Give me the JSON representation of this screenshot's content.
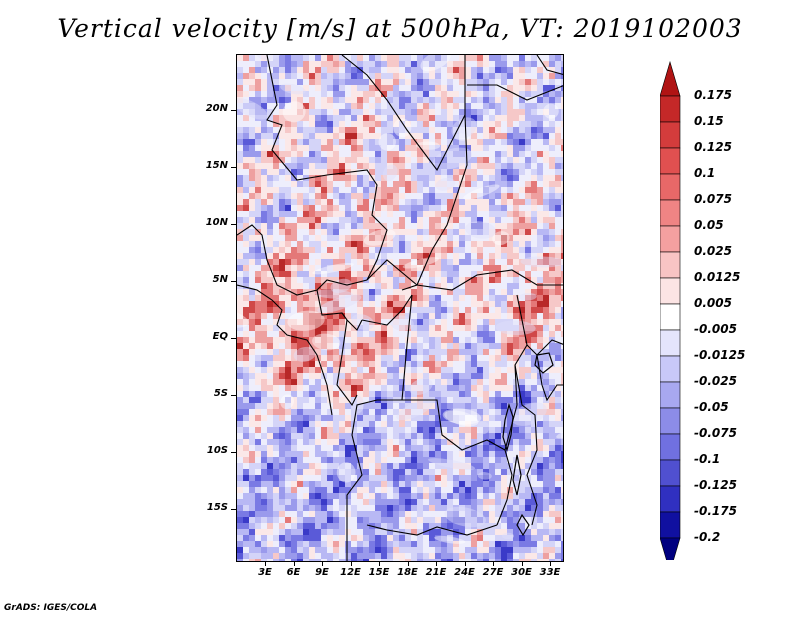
{
  "title": "Vertical velocity [m/s] at 500hPa, VT: 2019102003",
  "footer": "GrADS: IGES/COLA",
  "map": {
    "variable": "Vertical velocity",
    "units": "m/s",
    "level": "500hPa",
    "valid_time": "2019102003",
    "lat_labels": [
      "20N",
      "15N",
      "10N",
      "5N",
      "EQ",
      "5S",
      "10S",
      "15S"
    ],
    "lon_labels": [
      "3E",
      "6E",
      "9E",
      "12E",
      "15E",
      "18E",
      "21E",
      "24E",
      "27E",
      "30E",
      "33E"
    ]
  },
  "colorbar": {
    "labels": [
      "0.175",
      "0.15",
      "0.125",
      "0.1",
      "0.075",
      "0.05",
      "0.025",
      "0.0125",
      "0.005",
      "-0.005",
      "-0.0125",
      "-0.025",
      "-0.05",
      "-0.075",
      "-0.1",
      "-0.125",
      "-0.175",
      "-0.2"
    ],
    "colors": [
      "#b01414",
      "#c42828",
      "#d43c3c",
      "#e05050",
      "#e86868",
      "#f08484",
      "#f4a0a0",
      "#f8c4c4",
      "#fce4e4",
      "#ffffff",
      "#e4e4fc",
      "#c8c8f8",
      "#a8a8f0",
      "#8c8ce8",
      "#7070e0",
      "#5050d0",
      "#3030c0",
      "#1010a0",
      "#000080"
    ]
  }
}
